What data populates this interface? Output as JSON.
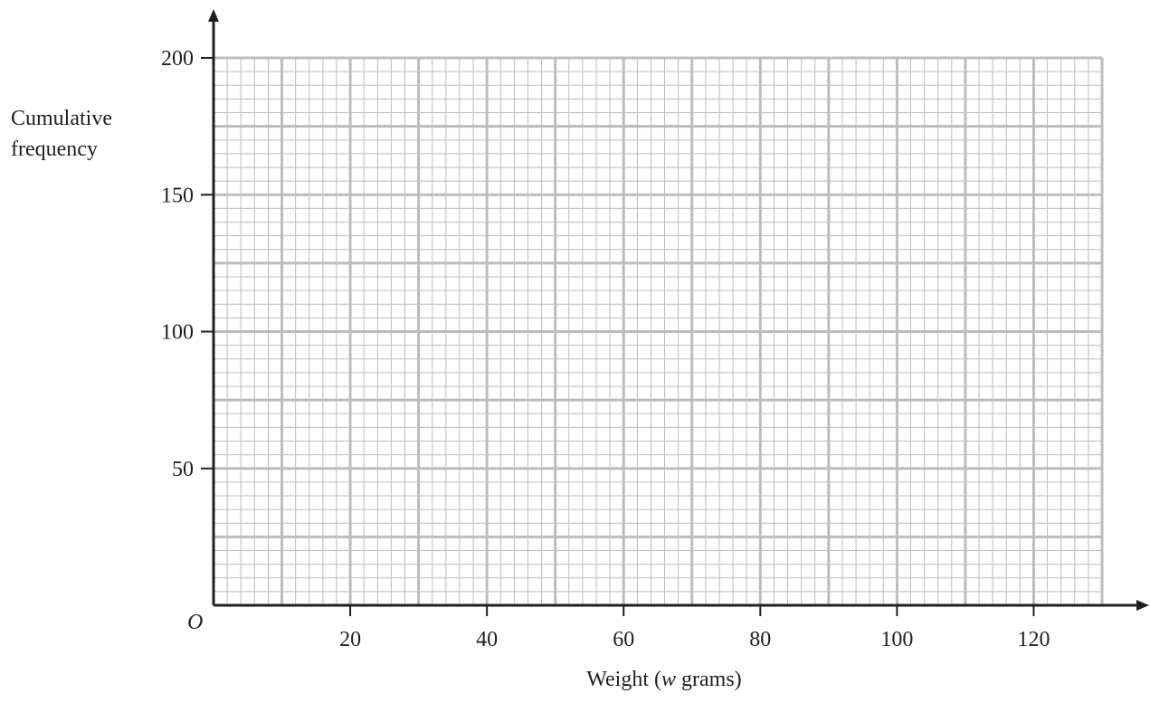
{
  "chart_data": {
    "type": "line",
    "title": "",
    "xlabel_prefix": "Weight (",
    "xlabel_var": "w",
    "xlabel_suffix": " grams)",
    "ylabel_lines": [
      "Cumulative",
      "frequency"
    ],
    "origin_label": "O",
    "xlim": [
      0,
      130
    ],
    "ylim": [
      0,
      200
    ],
    "x_ticks": [
      20,
      40,
      60,
      80,
      100,
      120
    ],
    "y_ticks": [
      50,
      100,
      150,
      200
    ],
    "x_major_grid_step": 10,
    "x_minor_grid_step": 2,
    "y_major_grid_step": 25,
    "y_minor_grid_step": 5,
    "grid": true,
    "series": [],
    "colors": {
      "axis": "#231f20",
      "grid": "#bcbdc0",
      "text": "#231f20"
    }
  }
}
